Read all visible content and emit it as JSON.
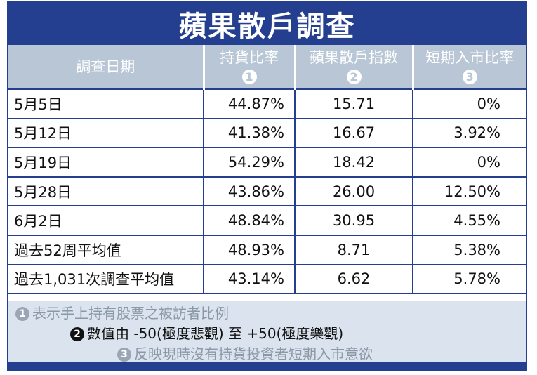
{
  "title": "蘋果散戶調查",
  "headers": [
    {
      "label": "調查日期",
      "num": ""
    },
    {
      "label": "持貨比率",
      "num": "1"
    },
    {
      "label": "蘋果散戶指數",
      "num": "2"
    },
    {
      "label": "短期入市比率",
      "num": "3"
    }
  ],
  "rows": [
    {
      "date": "5月5日",
      "holding": "44.87%",
      "index": "15.71",
      "short_term": "0%"
    },
    {
      "date": "5月12日",
      "holding": "41.38%",
      "index": "16.67",
      "short_term": "3.92%"
    },
    {
      "date": "5月19日",
      "holding": "54.29%",
      "index": "18.42",
      "short_term": "0%"
    },
    {
      "date": "5月28日",
      "holding": "43.86%",
      "index": "26.00",
      "short_term": "12.50%"
    },
    {
      "date": "6月2日",
      "holding": "48.84%",
      "index": "30.95",
      "short_term": "4.55%"
    },
    {
      "date": "過去52周平均值",
      "holding": "48.93%",
      "index": "8.71",
      "short_term": "5.38%"
    },
    {
      "date": "過去1,031次調查平均值",
      "holding": "43.14%",
      "index": "6.62",
      "short_term": "5.78%"
    }
  ],
  "notes": [
    {
      "num": "1",
      "text": "表示手上持有股票之被訪者比例"
    },
    {
      "num": "2",
      "text": "數值由 -50(極度悲觀) 至 +50(極度樂觀)"
    },
    {
      "num": "3",
      "text": "反映現時沒有持貨投資者短期入市意欲"
    }
  ],
  "colors": {
    "navy": "#243f8f",
    "header_bg": "#b9c6d6",
    "notes_bg": "#dbe3ee"
  }
}
